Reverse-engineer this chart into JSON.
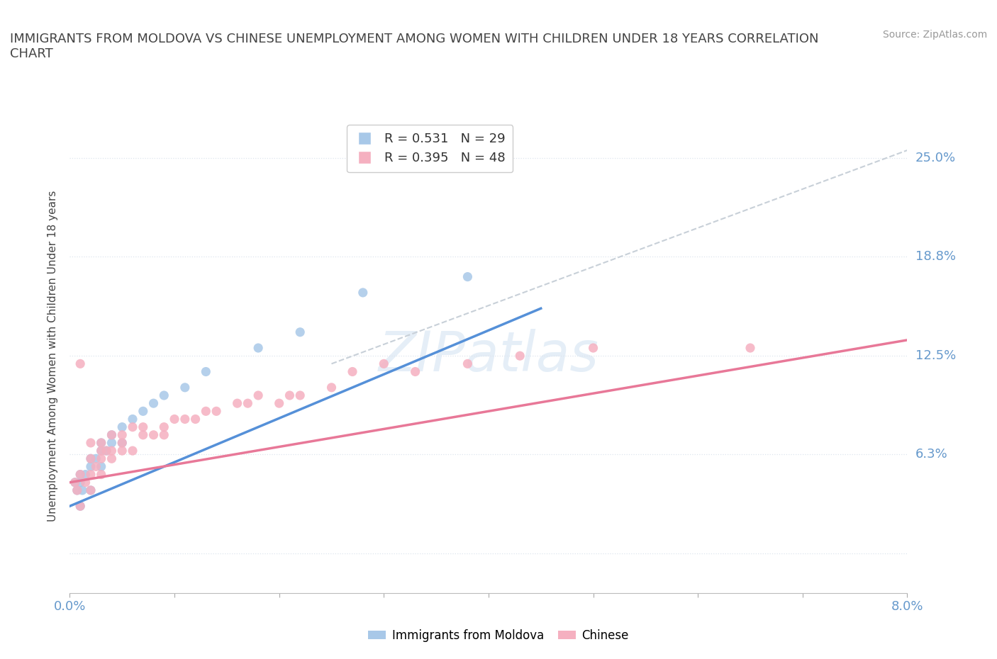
{
  "title": "IMMIGRANTS FROM MOLDOVA VS CHINESE UNEMPLOYMENT AMONG WOMEN WITH CHILDREN UNDER 18 YEARS CORRELATION\nCHART",
  "source": "Source: ZipAtlas.com",
  "ylabel": "Unemployment Among Women with Children Under 18 years",
  "xmin": 0.0,
  "xmax": 0.08,
  "ymin": -0.025,
  "ymax": 0.275,
  "yticks": [
    0.0,
    0.063,
    0.125,
    0.188,
    0.25
  ],
  "ytick_labels": [
    "",
    "6.3%",
    "12.5%",
    "18.8%",
    "25.0%"
  ],
  "xticks": [
    0.0,
    0.01,
    0.02,
    0.03,
    0.04,
    0.05,
    0.06,
    0.07,
    0.08
  ],
  "xtick_labels": [
    "0.0%",
    "",
    "",
    "",
    "",
    "",
    "",
    "",
    "8.0%"
  ],
  "legend_r1": "R = 0.531",
  "legend_n1": "N = 29",
  "legend_r2": "R = 0.395",
  "legend_n2": "N = 48",
  "color_moldova": "#a8c8e8",
  "color_chinese": "#f5b0c0",
  "color_moldova_line": "#5590d8",
  "color_chinese_line": "#e87898",
  "color_trendline_dashed": "#c8d0d8",
  "moldova_x": [
    0.0005,
    0.0007,
    0.001,
    0.001,
    0.001,
    0.0012,
    0.0015,
    0.002,
    0.002,
    0.002,
    0.0025,
    0.003,
    0.003,
    0.003,
    0.0035,
    0.004,
    0.004,
    0.005,
    0.005,
    0.006,
    0.007,
    0.008,
    0.009,
    0.011,
    0.013,
    0.018,
    0.022,
    0.028,
    0.038
  ],
  "moldova_y": [
    0.045,
    0.04,
    0.03,
    0.045,
    0.05,
    0.04,
    0.05,
    0.04,
    0.055,
    0.06,
    0.06,
    0.055,
    0.065,
    0.07,
    0.065,
    0.07,
    0.075,
    0.07,
    0.08,
    0.085,
    0.09,
    0.095,
    0.1,
    0.105,
    0.115,
    0.13,
    0.14,
    0.165,
    0.175
  ],
  "chinese_x": [
    0.0005,
    0.0007,
    0.001,
    0.001,
    0.001,
    0.0015,
    0.002,
    0.002,
    0.002,
    0.002,
    0.0025,
    0.003,
    0.003,
    0.003,
    0.003,
    0.0035,
    0.004,
    0.004,
    0.004,
    0.005,
    0.005,
    0.005,
    0.006,
    0.006,
    0.007,
    0.007,
    0.008,
    0.009,
    0.009,
    0.01,
    0.011,
    0.012,
    0.013,
    0.014,
    0.016,
    0.017,
    0.018,
    0.02,
    0.021,
    0.022,
    0.025,
    0.027,
    0.03,
    0.033,
    0.038,
    0.043,
    0.05,
    0.065
  ],
  "chinese_y": [
    0.045,
    0.04,
    0.03,
    0.05,
    0.12,
    0.045,
    0.04,
    0.05,
    0.06,
    0.07,
    0.055,
    0.05,
    0.06,
    0.065,
    0.07,
    0.065,
    0.06,
    0.065,
    0.075,
    0.065,
    0.07,
    0.075,
    0.065,
    0.08,
    0.075,
    0.08,
    0.075,
    0.075,
    0.08,
    0.085,
    0.085,
    0.085,
    0.09,
    0.09,
    0.095,
    0.095,
    0.1,
    0.095,
    0.1,
    0.1,
    0.105,
    0.115,
    0.12,
    0.115,
    0.12,
    0.125,
    0.13,
    0.13
  ],
  "moldova_line_x": [
    0.0,
    0.045
  ],
  "moldova_line_y": [
    0.03,
    0.155
  ],
  "chinese_line_x": [
    0.0,
    0.08
  ],
  "chinese_line_y": [
    0.045,
    0.135
  ],
  "ref_line_x": [
    0.025,
    0.08
  ],
  "ref_line_y": [
    0.12,
    0.255
  ],
  "background_color": "#ffffff",
  "grid_color": "#dde5ee",
  "tick_label_color": "#6699cc"
}
